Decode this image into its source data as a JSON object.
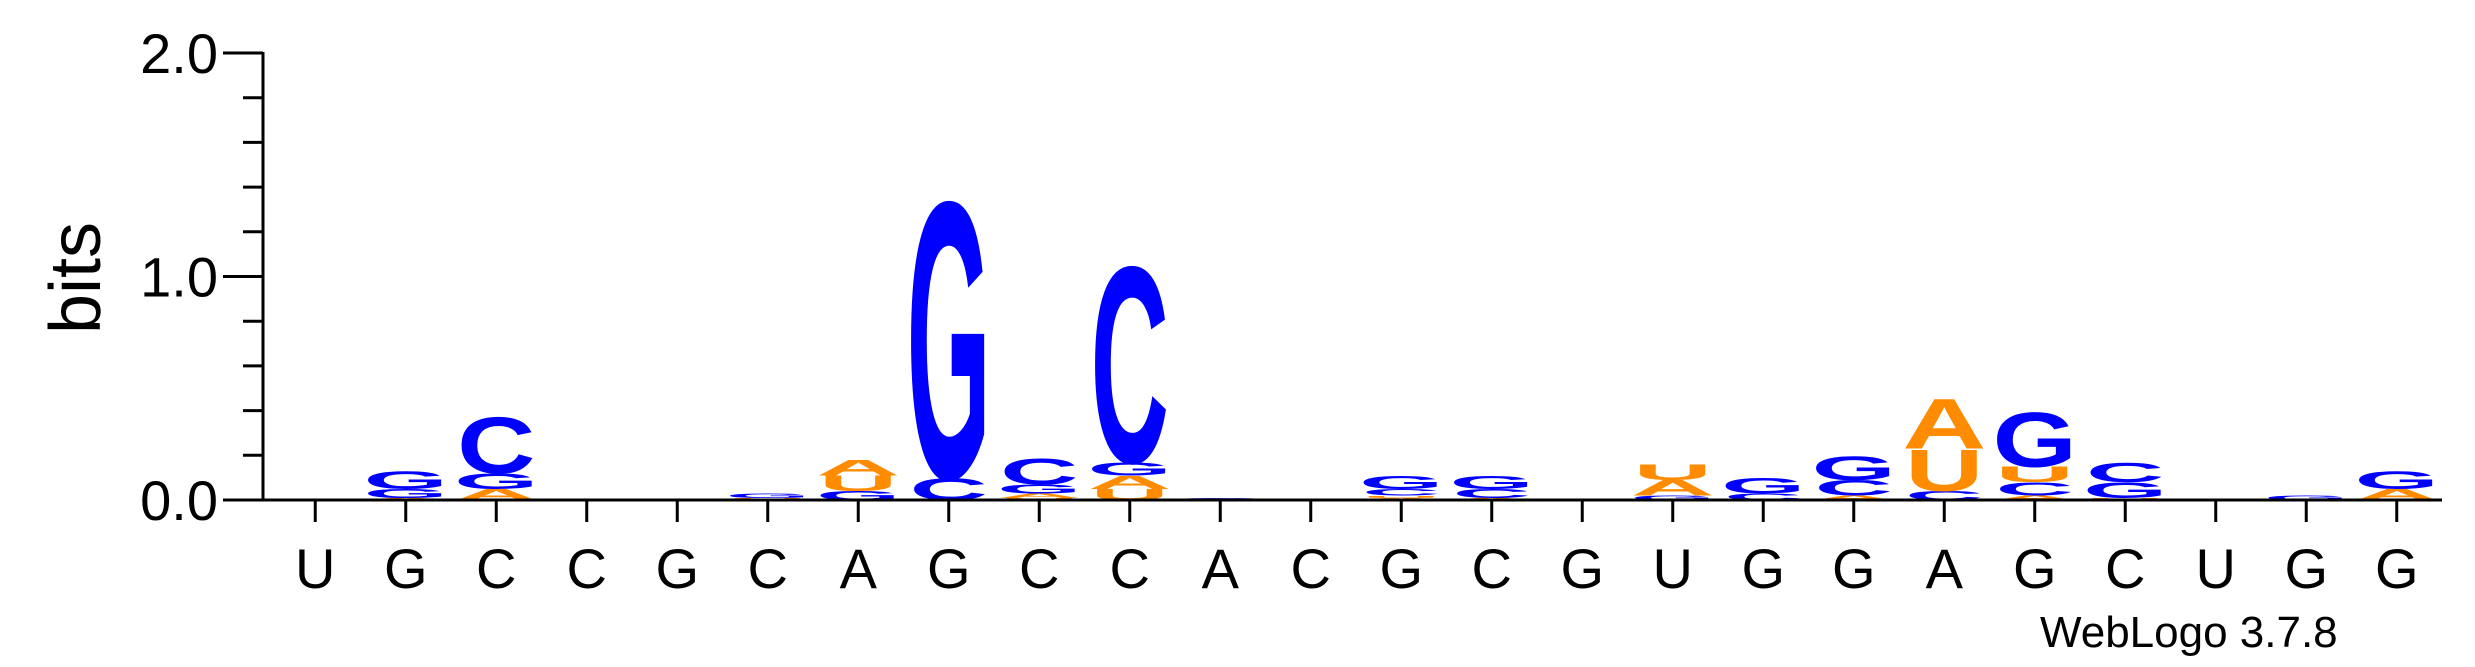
{
  "chart_data": {
    "type": "sequence-logo",
    "ylabel": "bits",
    "ylim": [
      0,
      2.0
    ],
    "yticks": [
      "0.0",
      "1.0",
      "2.0"
    ],
    "colors": {
      "G": "#0000ff",
      "C": "#0000ff",
      "A": "#ff8c00",
      "U": "#ff8c00"
    },
    "positions": [
      {
        "label": "U",
        "stack": []
      },
      {
        "label": "G",
        "stack": [
          {
            "letter": "A",
            "bits": 0.01
          },
          {
            "letter": "G",
            "bits": 0.04
          },
          {
            "letter": "G",
            "bits": 0.08
          }
        ]
      },
      {
        "label": "C",
        "stack": [
          {
            "letter": "A",
            "bits": 0.05
          },
          {
            "letter": "G",
            "bits": 0.07
          },
          {
            "letter": "C",
            "bits": 0.26
          }
        ]
      },
      {
        "label": "C",
        "stack": []
      },
      {
        "label": "G",
        "stack": []
      },
      {
        "label": "C",
        "stack": [
          {
            "letter": "U",
            "bits": 0.01
          },
          {
            "letter": "G",
            "bits": 0.02
          }
        ]
      },
      {
        "label": "A",
        "stack": [
          {
            "letter": "G",
            "bits": 0.04
          },
          {
            "letter": "U",
            "bits": 0.07
          },
          {
            "letter": "A",
            "bits": 0.07
          }
        ]
      },
      {
        "label": "G",
        "stack": [
          {
            "letter": "C",
            "bits": 0.1
          },
          {
            "letter": "G",
            "bits": 1.27
          }
        ]
      },
      {
        "label": "C",
        "stack": [
          {
            "letter": "U",
            "bits": 0.01
          },
          {
            "letter": "A",
            "bits": 0.02
          },
          {
            "letter": "G",
            "bits": 0.04
          },
          {
            "letter": "C",
            "bits": 0.12
          }
        ]
      },
      {
        "label": "C",
        "stack": [
          {
            "letter": "U",
            "bits": 0.05
          },
          {
            "letter": "A",
            "bits": 0.06
          },
          {
            "letter": "G",
            "bits": 0.06
          },
          {
            "letter": "C",
            "bits": 0.9
          }
        ]
      },
      {
        "label": "A",
        "stack": [
          {
            "letter": "G",
            "bits": 0.01
          }
        ]
      },
      {
        "label": "C",
        "stack": []
      },
      {
        "label": "G",
        "stack": [
          {
            "letter": "A",
            "bits": 0.01
          },
          {
            "letter": "U",
            "bits": 0.01
          },
          {
            "letter": "C",
            "bits": 0.03
          },
          {
            "letter": "G",
            "bits": 0.06
          }
        ]
      },
      {
        "label": "C",
        "stack": [
          {
            "letter": "A",
            "bits": 0.01
          },
          {
            "letter": "C",
            "bits": 0.04
          },
          {
            "letter": "G",
            "bits": 0.06
          }
        ]
      },
      {
        "label": "G",
        "stack": []
      },
      {
        "label": "U",
        "stack": [
          {
            "letter": "G",
            "bits": 0.02
          },
          {
            "letter": "A",
            "bits": 0.07
          },
          {
            "letter": "U",
            "bits": 0.07
          }
        ]
      },
      {
        "label": "G",
        "stack": [
          {
            "letter": "C",
            "bits": 0.03
          },
          {
            "letter": "G",
            "bits": 0.07
          }
        ]
      },
      {
        "label": "G",
        "stack": [
          {
            "letter": "A",
            "bits": 0.02
          },
          {
            "letter": "C",
            "bits": 0.07
          },
          {
            "letter": "G",
            "bits": 0.11
          }
        ]
      },
      {
        "label": "A",
        "stack": [
          {
            "letter": "C",
            "bits": 0.04
          },
          {
            "letter": "U",
            "bits": 0.19
          },
          {
            "letter": "A",
            "bits": 0.23
          }
        ]
      },
      {
        "label": "G",
        "stack": [
          {
            "letter": "A",
            "bits": 0.02
          },
          {
            "letter": "C",
            "bits": 0.06
          },
          {
            "letter": "U",
            "bits": 0.07
          },
          {
            "letter": "G",
            "bits": 0.25
          }
        ]
      },
      {
        "label": "C",
        "stack": [
          {
            "letter": "U",
            "bits": 0.01
          },
          {
            "letter": "G",
            "bits": 0.07
          },
          {
            "letter": "C",
            "bits": 0.09
          }
        ]
      },
      {
        "label": "U",
        "stack": []
      },
      {
        "label": "G",
        "stack": [
          {
            "letter": "G",
            "bits": 0.02
          }
        ]
      },
      {
        "label": "G",
        "stack": [
          {
            "letter": "A",
            "bits": 0.05
          },
          {
            "letter": "G",
            "bits": 0.08
          }
        ]
      }
    ]
  },
  "credit": "WebLogo 3.7.8"
}
